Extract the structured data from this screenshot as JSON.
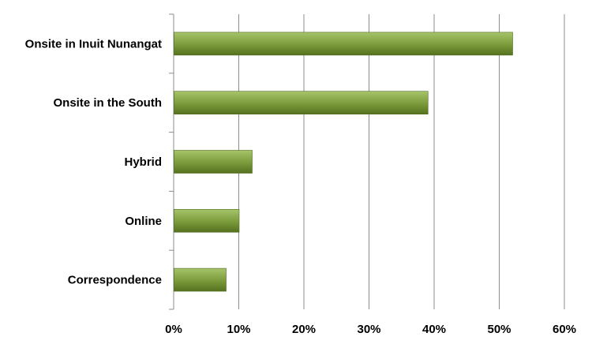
{
  "chart_data": {
    "type": "bar",
    "orientation": "horizontal",
    "categories": [
      "Onsite in Inuit Nunangat",
      "Onsite in the South",
      "Hybrid",
      "Online",
      "Correspondence"
    ],
    "values": [
      52,
      39,
      12,
      10,
      8
    ],
    "value_unit": "%",
    "xlim": [
      0,
      60
    ],
    "xticks": [
      "0%",
      "10%",
      "20%",
      "30%",
      "40%",
      "50%",
      "60%"
    ],
    "title": "",
    "xlabel": "",
    "ylabel": "",
    "grid": "vertical",
    "legend": "none",
    "colors": {
      "bar_top": "#a6c46a",
      "bar_mid": "#7a9a3a",
      "bar_bottom": "#55711f",
      "bar_edge": "#4e6b1e",
      "grid": "#8c8c8c",
      "axis": "#8c8c8c"
    }
  }
}
